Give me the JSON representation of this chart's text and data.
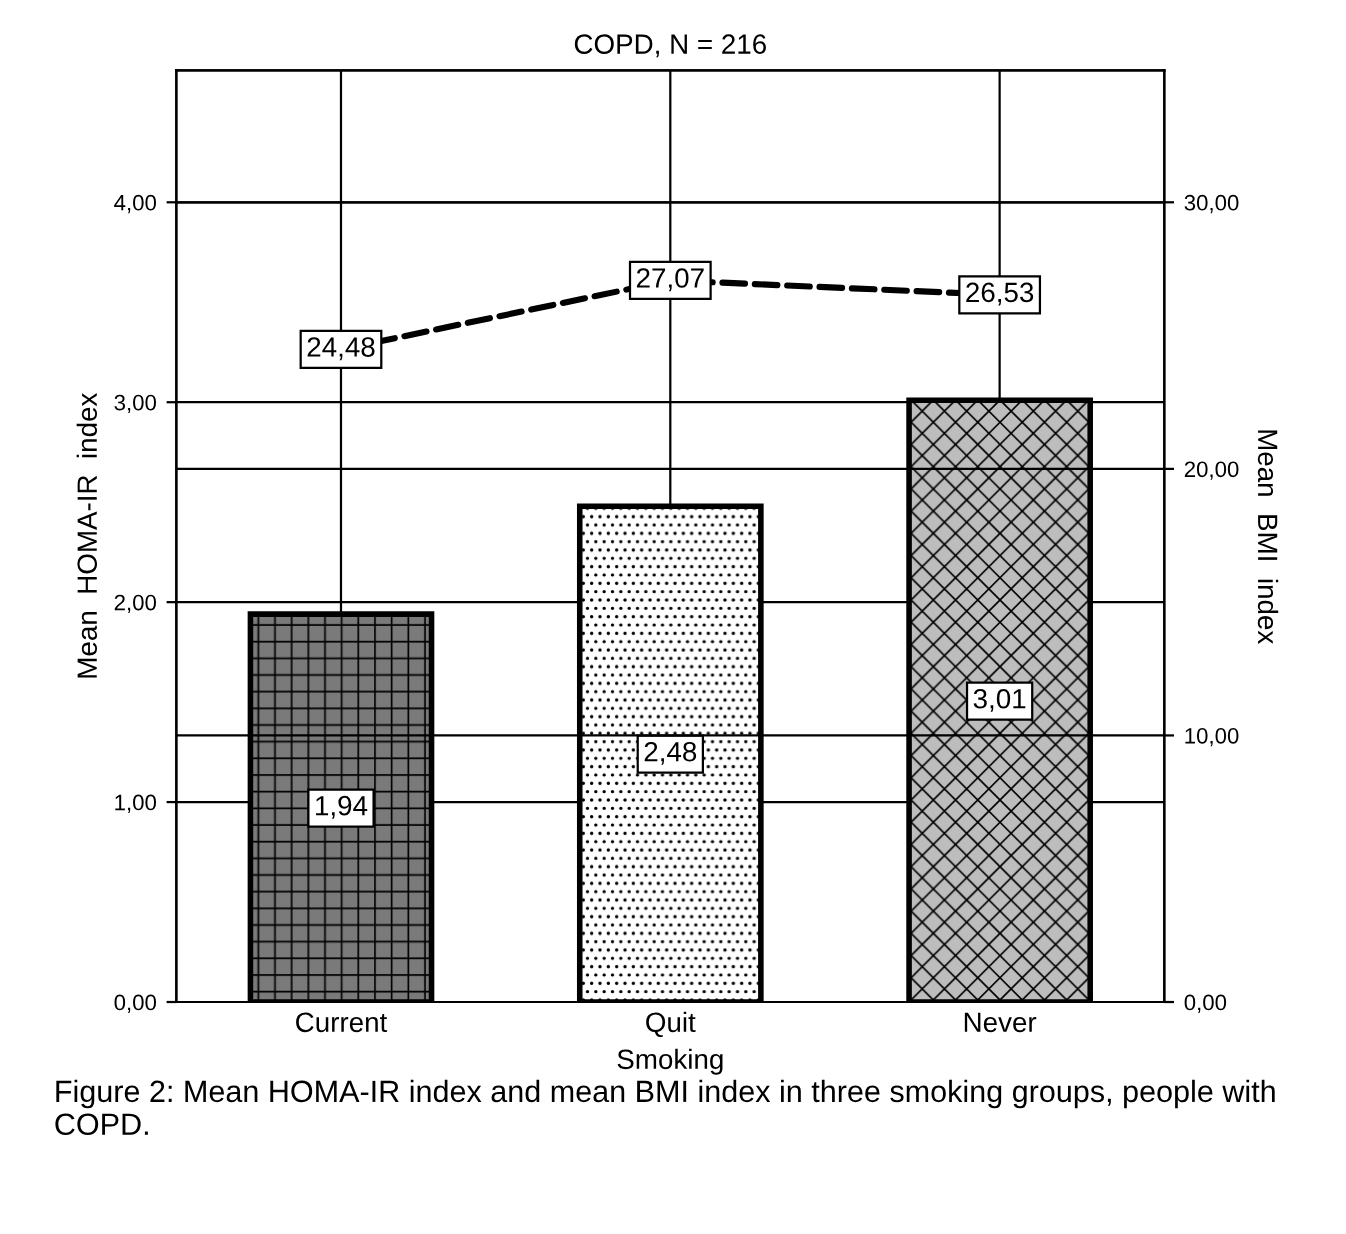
{
  "chart_data": {
    "type": "bar",
    "title": "COPD, N = 216",
    "xlabel": "Smoking",
    "ylabel": "Mean  HOMA-IR  index",
    "y2label": "Mean  BMI  index",
    "categories": [
      "Current",
      "Quit",
      "Never"
    ],
    "series": [
      {
        "colors": [
          "#7a7a7a",
          "#ffffff",
          "#bdbdbd"
        ],
        "values": [
          1.94,
          2.48,
          3.01
        ],
        "value_labels": [
          "1,94",
          "2,48",
          "3,01"
        ]
      },
      {
        "type": "line",
        "axis": "y2",
        "color": "#000000",
        "line_style": "dashed",
        "marker": "square",
        "values": [
          24.48,
          27.07,
          26.53
        ],
        "value_labels": [
          "24,48",
          "27,07",
          "26,53"
        ]
      }
    ],
    "ylim": [
      0,
      4.66
    ],
    "yticks": [
      {
        "value": 0,
        "label": "0,00"
      },
      {
        "value": 1,
        "label": "1,00"
      },
      {
        "value": 2,
        "label": "2,00"
      },
      {
        "value": 3,
        "label": "3,00"
      },
      {
        "value": 4,
        "label": "4,00"
      }
    ],
    "y2lim": [
      0,
      34.95
    ],
    "y2ticks": [
      {
        "value": 0,
        "label": "0,00"
      },
      {
        "value": 10,
        "label": "10,00"
      },
      {
        "value": 20,
        "label": "20,00"
      },
      {
        "value": 30,
        "label": "30,00"
      }
    ],
    "grid": true,
    "annotations": [
      "Figure 2: Mean HOMA-IR index and mean BMI index in three smoking groups, people with COPD."
    ]
  }
}
